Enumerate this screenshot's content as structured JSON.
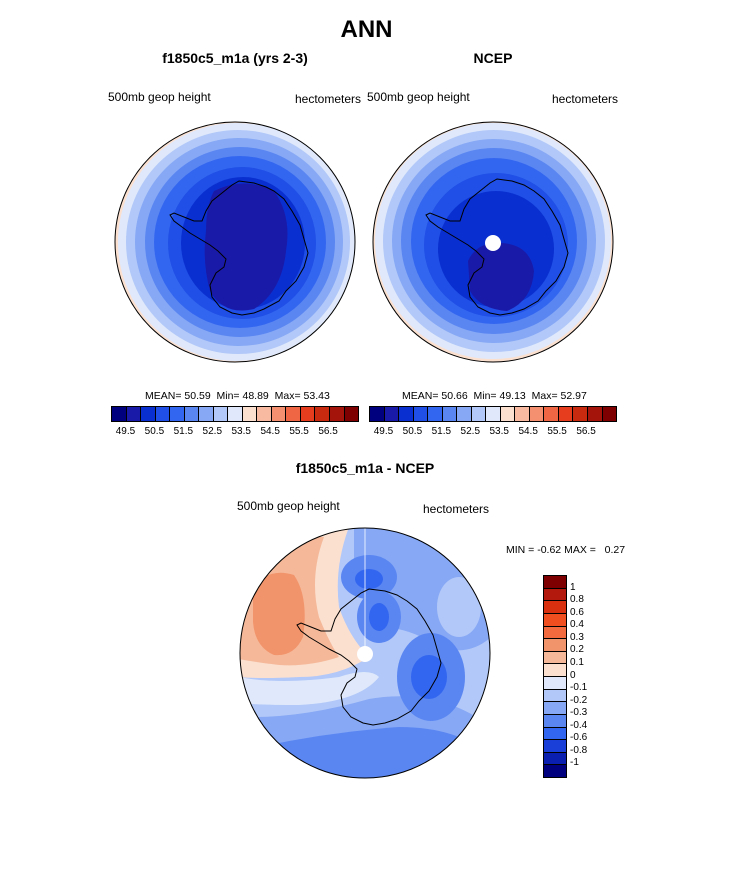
{
  "title": "ANN",
  "panels": [
    {
      "title": "f1850c5_m1a (yrs 2-3)",
      "variable": "500mb geop height",
      "units": "hectometers",
      "stats": {
        "mean_label": "MEAN=",
        "mean": "50.59",
        "min_label": "Min=",
        "min": "48.89",
        "max_label": "Max=",
        "max": "53.43"
      }
    },
    {
      "title": "NCEP",
      "variable": "500mb geop height",
      "units": "hectometers",
      "stats": {
        "mean_label": "MEAN=",
        "mean": "50.66",
        "min_label": "Min=",
        "min": "49.13",
        "max_label": "Max=",
        "max": "52.97"
      }
    }
  ],
  "colorbar_top": {
    "ticks": [
      "49.5",
      "50.5",
      "51.5",
      "52.5",
      "53.5",
      "54.5",
      "55.5",
      "56.5"
    ],
    "colors": [
      "#00007f",
      "#1a1aa8",
      "#0a2fd0",
      "#1f4fe6",
      "#3366f0",
      "#5a86f2",
      "#86a8f5",
      "#b2c8f8",
      "#dfe9fb",
      "#fbe0d0",
      "#f8baa0",
      "#f49070",
      "#ef6645",
      "#e53d1e",
      "#c82a10",
      "#a5140a",
      "#7f0000"
    ]
  },
  "diff_panel": {
    "title": "f1850c5_m1a - NCEP",
    "variable": "500mb geop height",
    "units": "hectometers",
    "stats": {
      "min_label": "MIN =",
      "min": "-0.62",
      "max_label": "MAX =",
      "max": "0.27"
    }
  },
  "colorbar_diff": {
    "labels": [
      "1",
      "0.8",
      "0.6",
      "0.4",
      "0.3",
      "0.2",
      "0.1",
      "0",
      "-0.1",
      "-0.2",
      "-0.3",
      "-0.4",
      "-0.6",
      "-0.8",
      "-1"
    ],
    "colors": [
      "#7f0000",
      "#b31a0d",
      "#d9310f",
      "#f04e1f",
      "#f26a3e",
      "#f2946b",
      "#f5b99a",
      "#fbe0d0",
      "#dfe9fb",
      "#b2c8f8",
      "#86a8f5",
      "#5a86f2",
      "#3366f0",
      "#1a3fd8",
      "#0a1fb0",
      "#00007f"
    ]
  }
}
